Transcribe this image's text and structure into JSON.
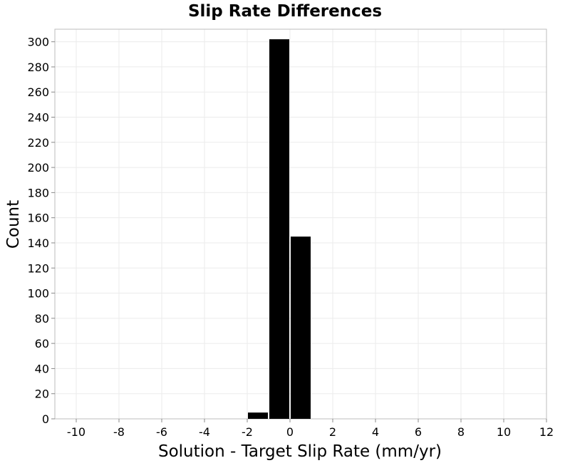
{
  "chart_data": {
    "type": "bar",
    "title": "Slip Rate Differences",
    "xlabel": "Solution - Target Slip Rate (mm/yr)",
    "ylabel": "Count",
    "xlim": [
      -11,
      12
    ],
    "ylim": [
      0,
      310
    ],
    "xticks": [
      -10,
      -8,
      -6,
      -4,
      -2,
      0,
      2,
      4,
      6,
      8,
      10,
      12
    ],
    "yticks": [
      0,
      20,
      40,
      60,
      80,
      100,
      120,
      140,
      160,
      180,
      200,
      220,
      240,
      260,
      280,
      300
    ],
    "bin_width": 1,
    "bars": [
      {
        "x": -1.5,
        "value": 5
      },
      {
        "x": -0.5,
        "value": 302
      },
      {
        "x": 0.5,
        "value": 145
      }
    ],
    "bar_color": "#000000",
    "grid": true
  }
}
